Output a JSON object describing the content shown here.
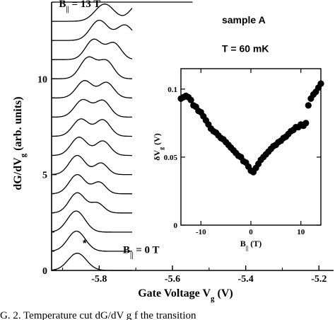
{
  "chart_data": [
    {
      "type": "line",
      "panel": "main",
      "xlabel": "Gate Voltage V",
      "xlabel_sub": "g",
      "xlabel_unit": " (V)",
      "ylabel": "dG/dV",
      "ylabel_sub": "g",
      "ylabel_unit": " (arb. units)",
      "xlim": [
        -5.93,
        -5.16
      ],
      "ylim": [
        0,
        14
      ],
      "x_ticks": [
        -5.8,
        -5.6,
        -5.4,
        -5.2
      ],
      "x_tick_labels": [
        "-5.8",
        "-5.6",
        "-5.4",
        "-5.2"
      ],
      "y_ticks": [
        0,
        5,
        10
      ],
      "y_tick_labels": [
        "0",
        "5",
        "10"
      ],
      "trace_offset_step": 1,
      "trace_x_end": -5.71,
      "b_start_T": 0,
      "b_end_T": 13,
      "traces": [
        {
          "offset": 0,
          "peaks": [
            {
              "x": -5.86,
              "h": 0.9,
              "w": 0.025
            }
          ]
        },
        {
          "offset": 1,
          "peaks": [
            {
              "x": -5.862,
              "h": 1.05,
              "w": 0.024
            }
          ]
        },
        {
          "offset": 2,
          "peaks": [
            {
              "x": -5.863,
              "h": 1.1,
              "w": 0.024
            }
          ]
        },
        {
          "offset": 3,
          "peaks": [
            {
              "x": -5.86,
              "h": 1.05,
              "w": 0.022
            },
            {
              "x": -5.805,
              "h": 0.5,
              "w": 0.018
            }
          ]
        },
        {
          "offset": 4,
          "peaks": [
            {
              "x": -5.86,
              "h": 1.0,
              "w": 0.022
            },
            {
              "x": -5.8,
              "h": 0.6,
              "w": 0.018
            }
          ]
        },
        {
          "offset": 5,
          "peaks": [
            {
              "x": -5.86,
              "h": 1.0,
              "w": 0.022
            },
            {
              "x": -5.795,
              "h": 0.6,
              "w": 0.018
            }
          ]
        },
        {
          "offset": 6,
          "peaks": [
            {
              "x": -5.855,
              "h": 0.95,
              "w": 0.022
            },
            {
              "x": -5.79,
              "h": 0.75,
              "w": 0.02
            }
          ]
        },
        {
          "offset": 7,
          "peaks": [
            {
              "x": -5.85,
              "h": 0.9,
              "w": 0.022
            },
            {
              "x": -5.79,
              "h": 0.85,
              "w": 0.02
            }
          ]
        },
        {
          "offset": 8,
          "peaks": [
            {
              "x": -5.845,
              "h": 0.9,
              "w": 0.022
            },
            {
              "x": -5.79,
              "h": 0.85,
              "w": 0.02
            }
          ]
        },
        {
          "offset": 9,
          "peaks": [
            {
              "x": -5.84,
              "h": 0.9,
              "w": 0.022
            },
            {
              "x": -5.78,
              "h": 0.8,
              "w": 0.02
            }
          ]
        },
        {
          "offset": 10,
          "peaks": [
            {
              "x": -5.83,
              "h": 1.1,
              "w": 0.022
            },
            {
              "x": -5.78,
              "h": 0.9,
              "w": 0.02
            }
          ]
        },
        {
          "offset": 11,
          "peaks": [
            {
              "x": -5.815,
              "h": 1.05,
              "w": 0.022
            },
            {
              "x": -5.76,
              "h": 0.85,
              "w": 0.02
            }
          ]
        },
        {
          "offset": 12,
          "peaks": [
            {
              "x": -5.8,
              "h": 1.05,
              "w": 0.024
            },
            {
              "x": -5.73,
              "h": 0.8,
              "w": 0.022
            }
          ]
        },
        {
          "offset": 13,
          "peaks": [
            {
              "x": -5.785,
              "h": 0.9,
              "w": 0.026
            },
            {
              "x": -5.69,
              "h": 0.95,
              "w": 0.024
            }
          ]
        },
        {
          "offset": 14,
          "peaks": [
            {
              "x": -5.735,
              "h": 1.4,
              "w": 0.026
            },
            {
              "x": -5.63,
              "h": 1.3,
              "w": 0.028
            }
          ]
        }
      ],
      "trace_clip_top": 14.0,
      "annotations": [
        {
          "text_main": "B",
          "text_sub": "||",
          "text_rest": " = 13 T",
          "x": -5.91,
          "y": 13.75
        },
        {
          "text_main": "B",
          "text_sub": "||",
          "text_rest": " = 0 T",
          "x": -5.735,
          "y": 0.9
        },
        {
          "text_main": "sample A",
          "text_sub": "",
          "text_rest": "",
          "x": -5.465,
          "y": 12.9
        },
        {
          "text_main": "T = 60 mK",
          "text_sub": "",
          "text_rest": "",
          "x": -5.465,
          "y": 11.4
        },
        {
          "text_main": "*",
          "text_sub": "",
          "text_rest": "",
          "x": -5.845,
          "y": 1.25
        }
      ]
    },
    {
      "type": "scatter",
      "panel": "inset",
      "xlabel": "B",
      "xlabel_sub": "||",
      "xlabel_unit": " (T)",
      "ylabel": "δV",
      "ylabel_sub": "g",
      "ylabel_unit": " (V)",
      "xlim": [
        -14,
        14
      ],
      "ylim": [
        0,
        0.115
      ],
      "x_ticks": [
        -10,
        0,
        10
      ],
      "x_tick_labels": [
        "-10",
        "0",
        "10"
      ],
      "y_ticks": [
        0,
        0.05,
        0.1
      ],
      "y_tick_labels": [
        "0",
        "0.05",
        "0.1"
      ],
      "x": [
        -14.0,
        -13.5,
        -13.0,
        -12.5,
        -12.0,
        -11.5,
        -11.0,
        -10.5,
        -10.0,
        -9.5,
        -9.0,
        -8.5,
        -8.0,
        -7.5,
        -7.0,
        -6.5,
        -6.0,
        -5.5,
        -5.0,
        -4.5,
        -4.0,
        -3.5,
        -3.0,
        -2.5,
        -2.0,
        -1.5,
        -1.0,
        -0.5,
        0.0,
        0.5,
        1.0,
        1.5,
        2.0,
        2.5,
        3.0,
        3.5,
        4.0,
        4.5,
        5.0,
        5.5,
        6.0,
        6.5,
        7.0,
        7.5,
        8.0,
        8.5,
        9.0,
        9.5,
        10.0,
        10.5,
        11.0,
        11.5,
        12.0,
        12.5,
        13.0,
        13.5,
        14.0
      ],
      "y": [
        0.093,
        0.094,
        0.095,
        0.094,
        0.092,
        0.088,
        0.087,
        0.084,
        0.083,
        0.08,
        0.077,
        0.074,
        0.071,
        0.069,
        0.068,
        0.066,
        0.064,
        0.063,
        0.061,
        0.059,
        0.057,
        0.055,
        0.053,
        0.051,
        0.05,
        0.047,
        0.046,
        0.043,
        0.04,
        0.039,
        0.042,
        0.045,
        0.048,
        0.05,
        0.052,
        0.054,
        0.056,
        0.058,
        0.059,
        0.061,
        0.062,
        0.064,
        0.065,
        0.067,
        0.069,
        0.07,
        0.072,
        0.072,
        0.074,
        0.073,
        0.075,
        0.088,
        0.093,
        0.096,
        0.098,
        0.101,
        0.104
      ]
    }
  ],
  "caption": {
    "text": "G. 2.   Temperature cut   dG/dV g   f  the transition"
  }
}
